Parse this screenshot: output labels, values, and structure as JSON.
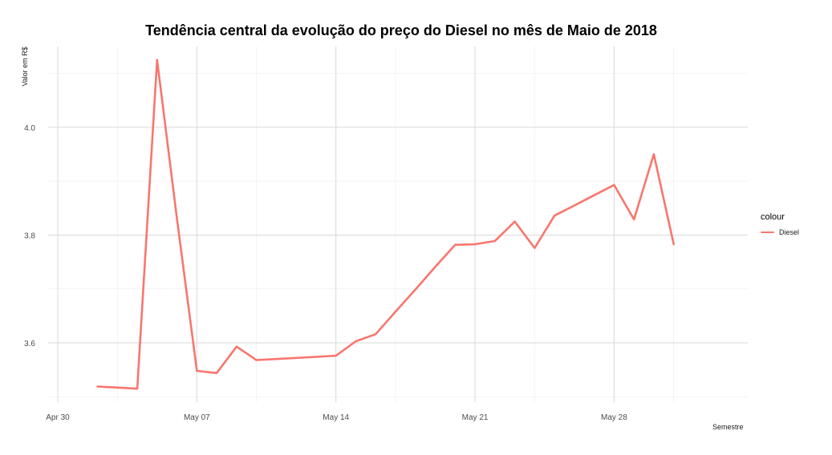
{
  "chart_data": {
    "type": "line",
    "title": "Tendência central da evolução do preço do Diesel no mês de Maio de 2018",
    "xlabel": "Semestre",
    "ylabel": "Valor em R$",
    "x_ticks": [
      {
        "date": "2018-04-30",
        "label": "Apr 30"
      },
      {
        "date": "2018-05-07",
        "label": "May 07"
      },
      {
        "date": "2018-05-14",
        "label": "May 14"
      },
      {
        "date": "2018-05-21",
        "label": "May 21"
      },
      {
        "date": "2018-05-28",
        "label": "May 28"
      }
    ],
    "y_ticks": [
      3.6,
      3.8,
      4.0
    ],
    "xlim": [
      "2018-04-30",
      "2018-06-03"
    ],
    "ylim": [
      3.49,
      4.15
    ],
    "grid": true,
    "legend": {
      "title": "colour",
      "position": "right"
    },
    "series": [
      {
        "name": "Diesel",
        "color": "#F8766D",
        "x": [
          "2018-05-02",
          "2018-05-03",
          "2018-05-04",
          "2018-05-05",
          "2018-05-06",
          "2018-05-07",
          "2018-05-08",
          "2018-05-09",
          "2018-05-10",
          "2018-05-11",
          "2018-05-12",
          "2018-05-13",
          "2018-05-14",
          "2018-05-15",
          "2018-05-16",
          "2018-05-17",
          "2018-05-18",
          "2018-05-19",
          "2018-05-20",
          "2018-05-21",
          "2018-05-22",
          "2018-05-23",
          "2018-05-24",
          "2018-05-25",
          "2018-05-26",
          "2018-05-27",
          "2018-05-28",
          "2018-05-29",
          "2018-05-30",
          "2018-05-31"
        ],
        "y": [
          3.519,
          3.517,
          3.515,
          4.125,
          3.83,
          3.548,
          3.544,
          3.593,
          3.568,
          3.57,
          3.572,
          3.574,
          3.576,
          3.603,
          3.616,
          3.658,
          3.699,
          3.741,
          3.782,
          3.783,
          3.789,
          3.825,
          3.776,
          3.836,
          3.855,
          3.874,
          3.893,
          3.829,
          3.95,
          3.783
        ]
      }
    ]
  }
}
